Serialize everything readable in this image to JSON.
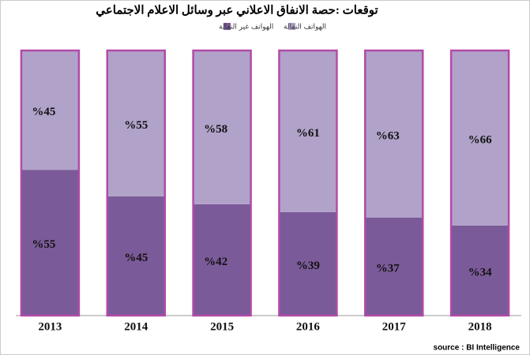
{
  "chart_data": {
    "type": "stacked-bar",
    "title": "توقعات :حصة الانفاق الاعلاني عبر وسائل الاعلام الاجتماعي",
    "categories": [
      "2013",
      "2014",
      "2015",
      "2016",
      "2017",
      "2018"
    ],
    "series": [
      {
        "name": "الهواتف غير النقالة",
        "color": "#7b5a99",
        "values": [
          55,
          45,
          42,
          39,
          37,
          34
        ],
        "value_labels": [
          "%55",
          "%45",
          "%42",
          "%39",
          "%37",
          "%34"
        ]
      },
      {
        "name": "الهواتف النقالة",
        "color": "#b1a2c9",
        "values": [
          45,
          55,
          58,
          61,
          63,
          66
        ],
        "value_labels": [
          "%45",
          "%55",
          "%58",
          "%61",
          "%63",
          "%66"
        ]
      }
    ],
    "ylim": [
      0,
      100
    ],
    "bar_border_color": "#b24aa8",
    "source": "source : BI Intelligence"
  }
}
